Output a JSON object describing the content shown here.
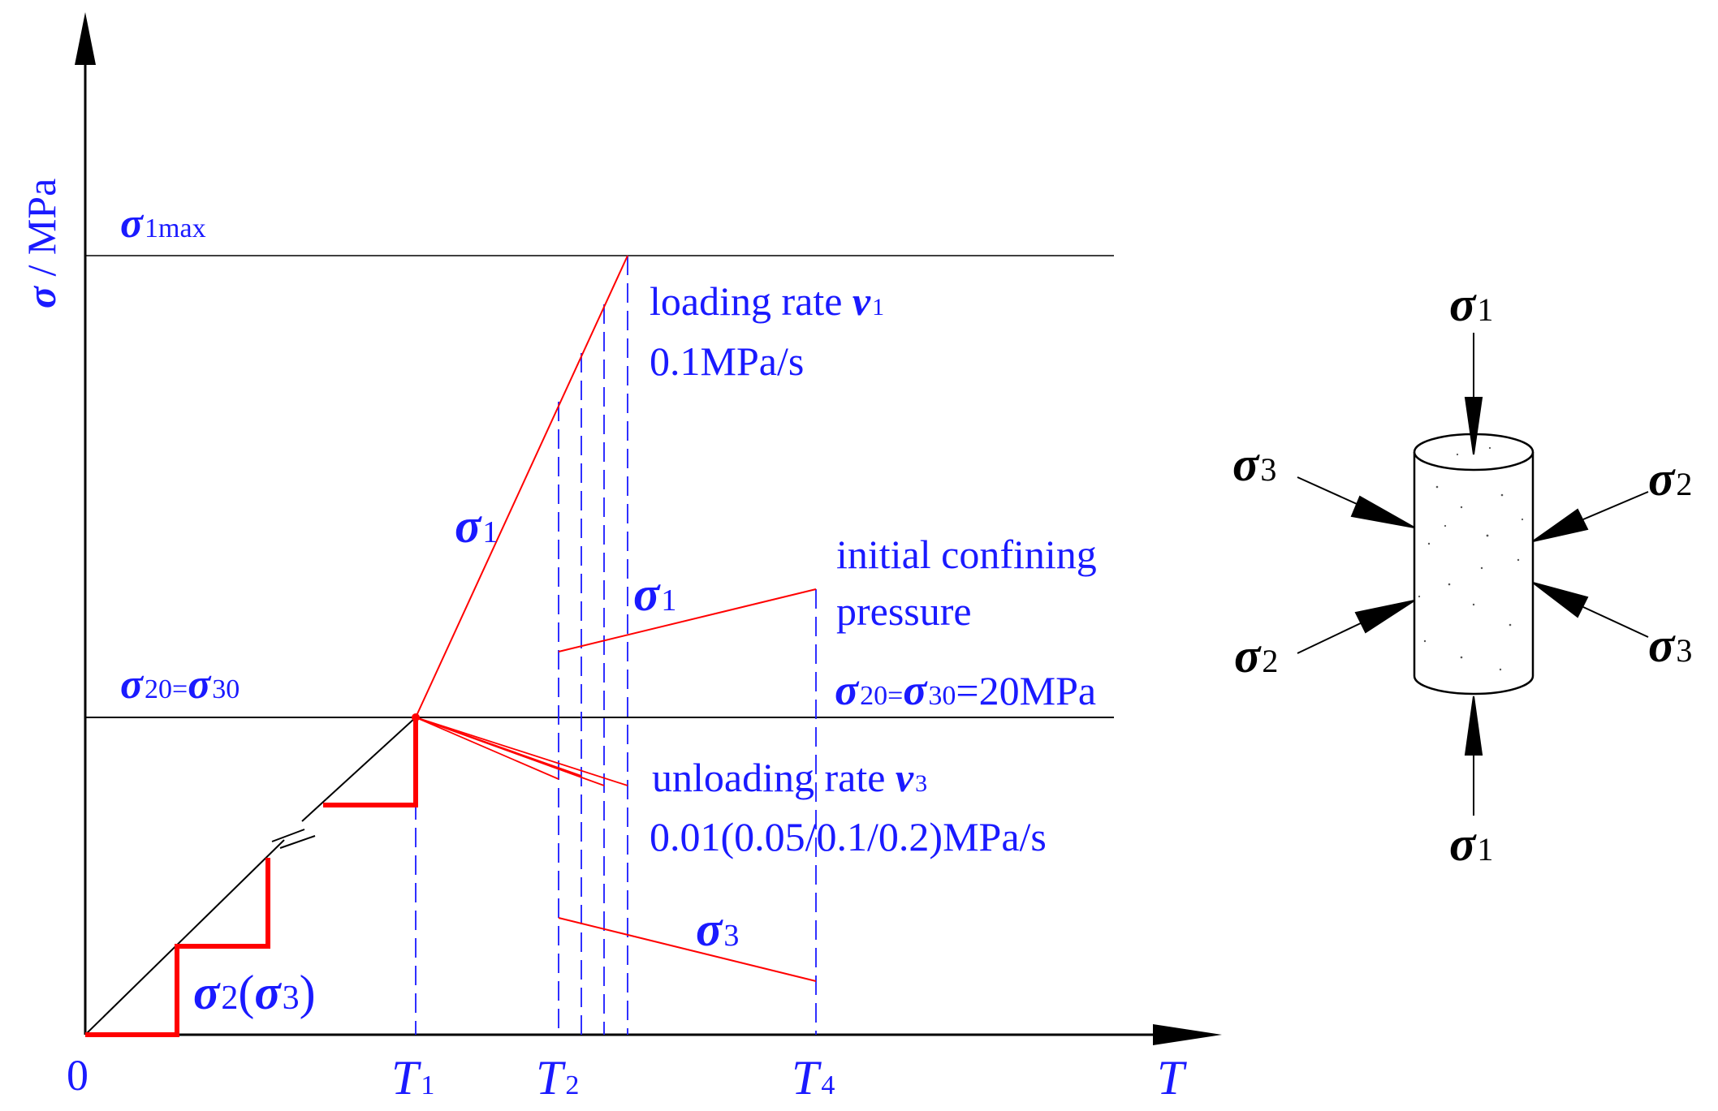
{
  "axes": {
    "y_label_symbol": "σ",
    "y_label_unit": " / MPa",
    "x_label": "T",
    "origin": "0"
  },
  "levels": {
    "sigma1max": {
      "symbol": "σ",
      "sub": "1max"
    },
    "sigma_init": {
      "a_symbol": "σ",
      "a_sub": "20",
      "eq": "=",
      "b_symbol": "σ",
      "b_sub": "30"
    }
  },
  "ticks": [
    {
      "main": "T",
      "sub": "1"
    },
    {
      "main": "T",
      "sub": "2"
    },
    {
      "main": "T",
      "sub": "4"
    }
  ],
  "curve_labels": {
    "sigma1_main": {
      "symbol": "σ",
      "sub": "1"
    },
    "sigma1_unload": {
      "symbol": "σ",
      "sub": "1"
    },
    "sigma3_unload": {
      "symbol": "σ",
      "sub": "3"
    },
    "stage": {
      "symbol": "σ",
      "sub": "2",
      "paren_open": "(",
      "inner_symbol": "σ",
      "inner_sub": "3",
      "paren_close": ")"
    }
  },
  "annotations": {
    "loading_rate": {
      "text": "loading rate ",
      "var": "v",
      "sub": "1",
      "value": "0.1MPa/s"
    },
    "initial_confining": {
      "line1": "initial confining",
      "line2": "pressure",
      "eq": {
        "a_symbol": "σ",
        "a_sub": "20",
        "eq": "=",
        "b_symbol": "σ",
        "b_sub": "30",
        "value": "=20MPa"
      }
    },
    "unloading_rate": {
      "text": "unloading rate ",
      "var": "v",
      "sub": "3",
      "value": "0.01(0.05/0.1/0.2)MPa/s"
    }
  },
  "specimen": {
    "labels": [
      {
        "id": "top",
        "symbol": "σ",
        "sub": "1"
      },
      {
        "id": "bottom",
        "symbol": "σ",
        "sub": "1"
      },
      {
        "id": "upper-left",
        "symbol": "σ",
        "sub": "3"
      },
      {
        "id": "upper-right",
        "symbol": "σ",
        "sub": "2"
      },
      {
        "id": "lower-left",
        "symbol": "σ",
        "sub": "2"
      },
      {
        "id": "lower-right",
        "symbol": "σ",
        "sub": "3"
      }
    ]
  },
  "colors": {
    "label": "#1a1aff",
    "curve": "#ff0000",
    "axis": "#000000",
    "guide": "#1a1aff"
  }
}
